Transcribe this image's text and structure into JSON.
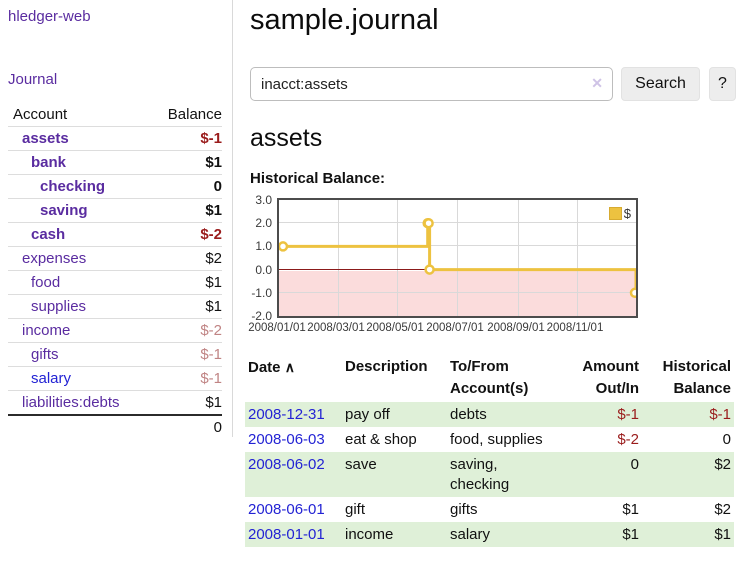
{
  "colors": {
    "purple": "#5a2ca0",
    "blue": "#2323d4",
    "negStrong": "#9a1c1c",
    "negFaded": "#c08484",
    "stripe": "#dff0d8",
    "gold": "#edc240",
    "goldBorder": "#d7ab31",
    "pink": "#fbdcdc",
    "zeroLine": "#8b1a1a",
    "grid": "#d9d9d9"
  },
  "app": {
    "title": "hledger-web"
  },
  "sidebar": {
    "journal_link": "Journal",
    "accounts": {
      "header_account": "Account",
      "header_balance": "Balance",
      "rows": [
        {
          "name": "assets",
          "balance": "$-1",
          "indent": 1,
          "bold": true,
          "link": "purple"
        },
        {
          "name": "bank",
          "balance": "$1",
          "indent": 2,
          "bold": true,
          "link": "purple"
        },
        {
          "name": "checking",
          "balance": "0",
          "indent": 3,
          "bold": true,
          "link": "purple"
        },
        {
          "name": "saving",
          "balance": "$1",
          "indent": 3,
          "bold": true,
          "link": "purple"
        },
        {
          "name": "cash",
          "balance": "$-2",
          "indent": 2,
          "bold": true,
          "link": "purple"
        },
        {
          "name": "expenses",
          "balance": "$2",
          "indent": 1,
          "bold": false,
          "link": "purple"
        },
        {
          "name": "food",
          "balance": "$1",
          "indent": 2,
          "bold": false,
          "link": "purple"
        },
        {
          "name": "supplies",
          "balance": "$1",
          "indent": 2,
          "bold": false,
          "link": "purple"
        },
        {
          "name": "income",
          "balance": "$-2",
          "indent": 1,
          "bold": false,
          "link": "purple"
        },
        {
          "name": "gifts",
          "balance": "$-1",
          "indent": 2,
          "bold": false,
          "link": "purple"
        },
        {
          "name": "salary",
          "balance": "$-1",
          "indent": 2,
          "bold": false,
          "link": "blue"
        },
        {
          "name": "liabilities:debts",
          "balance": "$1",
          "indent": 1,
          "bold": false,
          "link": "purple"
        }
      ],
      "total": "0"
    }
  },
  "main": {
    "title": "sample.journal",
    "search": {
      "value": "inacct:assets",
      "clear_icon": "✕",
      "search_label": "Search",
      "help_label": "?"
    },
    "account_heading": "assets",
    "section_label": "Historical Balance:"
  },
  "chart_data": {
    "type": "line",
    "title": "Historical Balance",
    "step": true,
    "xlim": [
      "2008-01-01",
      "2008-12-31"
    ],
    "ylim": [
      -2,
      3
    ],
    "x_ticks": [
      "2008/01/01",
      "2008/03/01",
      "2008/05/01",
      "2008/07/01",
      "2008/09/01",
      "2008/11/01"
    ],
    "y_ticks": [
      3.0,
      2.0,
      1.0,
      0.0,
      -1.0,
      -2.0
    ],
    "grid": true,
    "negative_region_shaded": true,
    "legend_position": "top-right",
    "legend": [
      {
        "label": "$",
        "color": "#edc240"
      }
    ],
    "series": [
      {
        "name": "$",
        "points": [
          {
            "x": "2008-01-01",
            "y": 1
          },
          {
            "x": "2008-06-01",
            "y": 2
          },
          {
            "x": "2008-06-02",
            "y": 2
          },
          {
            "x": "2008-06-03",
            "y": 0
          },
          {
            "x": "2008-12-31",
            "y": -1
          }
        ]
      }
    ]
  },
  "register": {
    "headers": [
      "Date",
      "Description",
      "To/From Account(s)",
      "Amount Out/In",
      "Historical Balance"
    ],
    "sort_icon": "∧",
    "sorted_column": "Date",
    "rows": [
      {
        "date": "2008-12-31",
        "description": "pay off",
        "accounts": "debts",
        "amount": "$-1",
        "balance": "$-1"
      },
      {
        "date": "2008-06-03",
        "description": "eat & shop",
        "accounts": "food, supplies",
        "amount": "$-2",
        "balance": "0"
      },
      {
        "date": "2008-06-02",
        "description": "save",
        "accounts": "saving, checking",
        "amount": "0",
        "balance": "$2"
      },
      {
        "date": "2008-06-01",
        "description": "gift",
        "accounts": "gifts",
        "amount": "$1",
        "balance": "$2"
      },
      {
        "date": "2008-01-01",
        "description": "income",
        "accounts": "salary",
        "amount": "$1",
        "balance": "$1"
      }
    ]
  }
}
